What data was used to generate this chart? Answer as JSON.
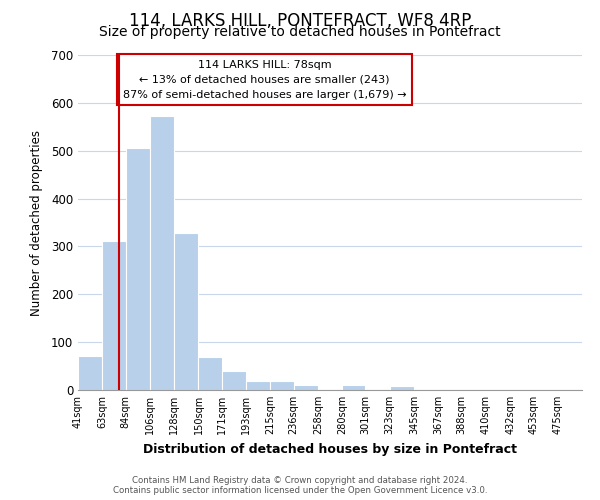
{
  "title": "114, LARKS HILL, PONTEFRACT, WF8 4RP",
  "subtitle": "Size of property relative to detached houses in Pontefract",
  "xlabel": "Distribution of detached houses by size in Pontefract",
  "ylabel": "Number of detached properties",
  "bar_labels": [
    "41sqm",
    "63sqm",
    "84sqm",
    "106sqm",
    "128sqm",
    "150sqm",
    "171sqm",
    "193sqm",
    "215sqm",
    "236sqm",
    "258sqm",
    "280sqm",
    "301sqm",
    "323sqm",
    "345sqm",
    "367sqm",
    "388sqm",
    "410sqm",
    "432sqm",
    "453sqm",
    "475sqm"
  ],
  "bar_values": [
    72,
    311,
    505,
    573,
    328,
    68,
    40,
    19,
    19,
    11,
    0,
    11,
    0,
    8,
    0,
    0,
    0,
    0,
    0,
    0,
    0
  ],
  "bar_color": "#b8d0ea",
  "property_line_x": 78,
  "bin_edges": [
    41,
    63,
    84,
    106,
    128,
    150,
    171,
    193,
    215,
    236,
    258,
    280,
    301,
    323,
    345,
    367,
    388,
    410,
    432,
    453,
    475,
    497
  ],
  "vline_color": "#cc0000",
  "annotation_line1": "114 LARKS HILL: 78sqm",
  "annotation_line2": "← 13% of detached houses are smaller (243)",
  "annotation_line3": "87% of semi-detached houses are larger (1,679) →",
  "ylim": [
    0,
    700
  ],
  "yticks": [
    0,
    100,
    200,
    300,
    400,
    500,
    600,
    700
  ],
  "background_color": "#ffffff",
  "grid_color": "#c8d8e8",
  "footer_line1": "Contains HM Land Registry data © Crown copyright and database right 2024.",
  "footer_line2": "Contains public sector information licensed under the Open Government Licence v3.0.",
  "title_fontsize": 12,
  "subtitle_fontsize": 10
}
